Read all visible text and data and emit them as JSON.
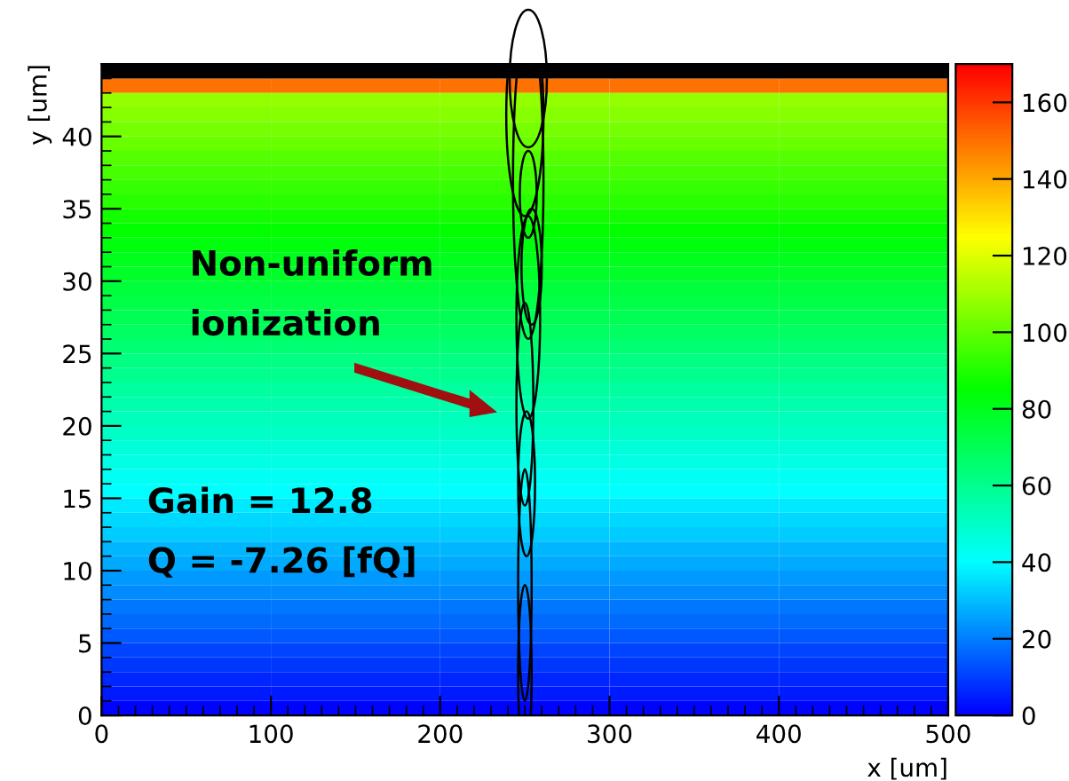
{
  "chart_data": {
    "type": "heatmap",
    "xlabel": "x [um]",
    "ylabel": "y [um]",
    "x": [
      50,
      150,
      250,
      350,
      450
    ],
    "y": [
      43.5,
      42.5,
      41.5,
      40.5,
      39.5,
      38.5,
      37.5,
      36.5,
      35.5,
      34.5,
      33.5,
      32.5,
      31.5,
      30.5,
      29.5,
      28.5,
      27.5,
      26.5,
      25.5,
      24.5,
      23.5,
      22.5,
      21.5,
      20.5,
      19.5,
      18.5,
      17.5,
      16.5,
      15.5,
      14.5,
      13.5,
      12.5,
      11.5,
      10.5,
      9.5,
      8.5,
      7.5,
      6.5,
      5.5,
      4.5,
      3.5,
      2.5,
      1.5,
      0.5
    ],
    "cells": [
      [
        150,
        150,
        150,
        150,
        150
      ],
      [
        108,
        108,
        108,
        108,
        108
      ],
      [
        106,
        106,
        106,
        106,
        106
      ],
      [
        103,
        103,
        103,
        103,
        103
      ],
      [
        101,
        101,
        101,
        101,
        101
      ],
      [
        98,
        98,
        98,
        98,
        98
      ],
      [
        96,
        96,
        96,
        96,
        96
      ],
      [
        93,
        93,
        93,
        93,
        93
      ],
      [
        91,
        91,
        91,
        91,
        91
      ],
      [
        88,
        88,
        88,
        88,
        88
      ],
      [
        85,
        85,
        85,
        85,
        85
      ],
      [
        83,
        83,
        83,
        83,
        83
      ],
      [
        80,
        80,
        80,
        80,
        80
      ],
      [
        78,
        78,
        78,
        78,
        78
      ],
      [
        75,
        75,
        75,
        75,
        75
      ],
      [
        73,
        73,
        73,
        73,
        73
      ],
      [
        70,
        70,
        70,
        70,
        70
      ],
      [
        68,
        68,
        68,
        68,
        68
      ],
      [
        65,
        65,
        65,
        65,
        65
      ],
      [
        62,
        62,
        62,
        62,
        62
      ],
      [
        60,
        60,
        60,
        60,
        60
      ],
      [
        57,
        57,
        57,
        57,
        57
      ],
      [
        55,
        55,
        55,
        55,
        55
      ],
      [
        52,
        52,
        52,
        52,
        52
      ],
      [
        50,
        50,
        50,
        50,
        50
      ],
      [
        47,
        47,
        47,
        47,
        47
      ],
      [
        45,
        45,
        45,
        45,
        45
      ],
      [
        42,
        42,
        42,
        42,
        42
      ],
      [
        40,
        40,
        40,
        40,
        40
      ],
      [
        37,
        37,
        37,
        37,
        37
      ],
      [
        34,
        34,
        34,
        34,
        34
      ],
      [
        32,
        32,
        32,
        32,
        32
      ],
      [
        29,
        29,
        29,
        29,
        29
      ],
      [
        27,
        27,
        27,
        27,
        27
      ],
      [
        24,
        24,
        24,
        24,
        24
      ],
      [
        22,
        22,
        22,
        22,
        22
      ],
      [
        19,
        19,
        19,
        19,
        19
      ],
      [
        17,
        17,
        17,
        17,
        17
      ],
      [
        14,
        14,
        14,
        14,
        14
      ],
      [
        11,
        11,
        11,
        11,
        11
      ],
      [
        9,
        9,
        9,
        9,
        9
      ],
      [
        6,
        6,
        6,
        6,
        6
      ],
      [
        4,
        4,
        4,
        4,
        4
      ],
      [
        1,
        1,
        1,
        1,
        1
      ]
    ],
    "xlim": [
      0,
      500
    ],
    "xticks": [
      0,
      100,
      200,
      300,
      400,
      500
    ],
    "ylim": [
      0,
      45
    ],
    "yticks": [
      0,
      5,
      10,
      15,
      20,
      25,
      30,
      35,
      40
    ],
    "clim": [
      0,
      170
    ],
    "cticks": [
      0,
      20,
      40,
      60,
      80,
      100,
      120,
      140,
      160
    ],
    "annotations": [
      "Non-uniform\nionization",
      "Gain = 12.8\nQ = -7.26 [fQ]"
    ]
  }
}
